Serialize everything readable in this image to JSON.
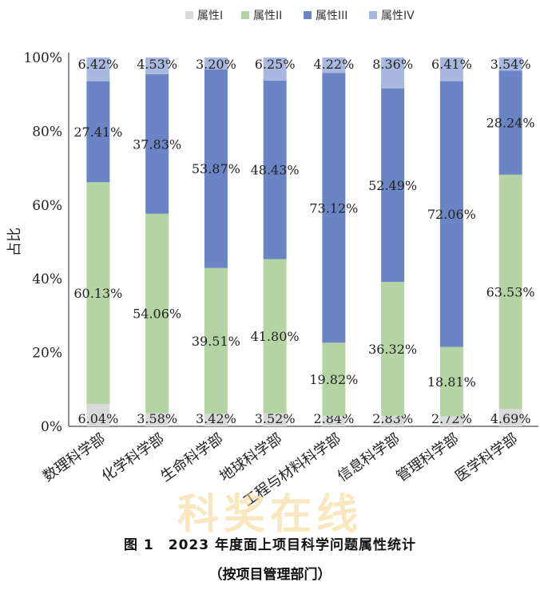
{
  "chart_data": {
    "type": "bar",
    "stacked": true,
    "percent": true,
    "ylabel": "占比",
    "xlabel": "",
    "ylim": [
      0,
      100
    ],
    "yticks": [
      "0%",
      "20%",
      "40%",
      "60%",
      "80%",
      "100%"
    ],
    "legend_position": "top",
    "categories": [
      "数理科学部",
      "化学科学部",
      "生命科学部",
      "地球科学部",
      "工程与材料科学部",
      "信息科学部",
      "管理科学部",
      "医学科学部"
    ],
    "series": [
      {
        "name": "属性I",
        "color": "#d9d9d9",
        "values": [
          6.04,
          3.58,
          3.42,
          3.52,
          2.84,
          2.83,
          2.72,
          4.69
        ],
        "labels": [
          "6.04%",
          "3.58%",
          "3.42%",
          "3.52%",
          "2.84%",
          "2.83%",
          "2.72%",
          "4.69%"
        ]
      },
      {
        "name": "属性II",
        "color": "#b4d5a3",
        "values": [
          60.13,
          54.06,
          39.51,
          41.8,
          19.82,
          36.32,
          18.81,
          63.53
        ],
        "labels": [
          "60.13%",
          "54.06%",
          "39.51%",
          "41.80%",
          "19.82%",
          "36.32%",
          "18.81%",
          "63.53%"
        ]
      },
      {
        "name": "属性III",
        "color": "#6b84c4",
        "values": [
          27.41,
          37.83,
          53.87,
          48.43,
          73.12,
          52.49,
          72.06,
          28.24
        ],
        "labels": [
          "27.41%",
          "37.83%",
          "53.87%",
          "48.43%",
          "73.12%",
          "52.49%",
          "72.06%",
          "28.24%"
        ]
      },
      {
        "name": "属性IV",
        "color": "#a9b8df",
        "values": [
          6.42,
          4.53,
          3.2,
          6.25,
          4.22,
          8.36,
          6.41,
          3.54
        ],
        "labels": [
          "6.42%",
          "4.53%",
          "3.20%",
          "6.25%",
          "4.22%",
          "8.36%",
          "6.41%",
          "3.54%"
        ]
      }
    ]
  },
  "caption": {
    "line1": "图 1　2023 年度面上项目科学问题属性统计",
    "line2": "（按项目管理部门）"
  },
  "watermark": "科奖在线"
}
